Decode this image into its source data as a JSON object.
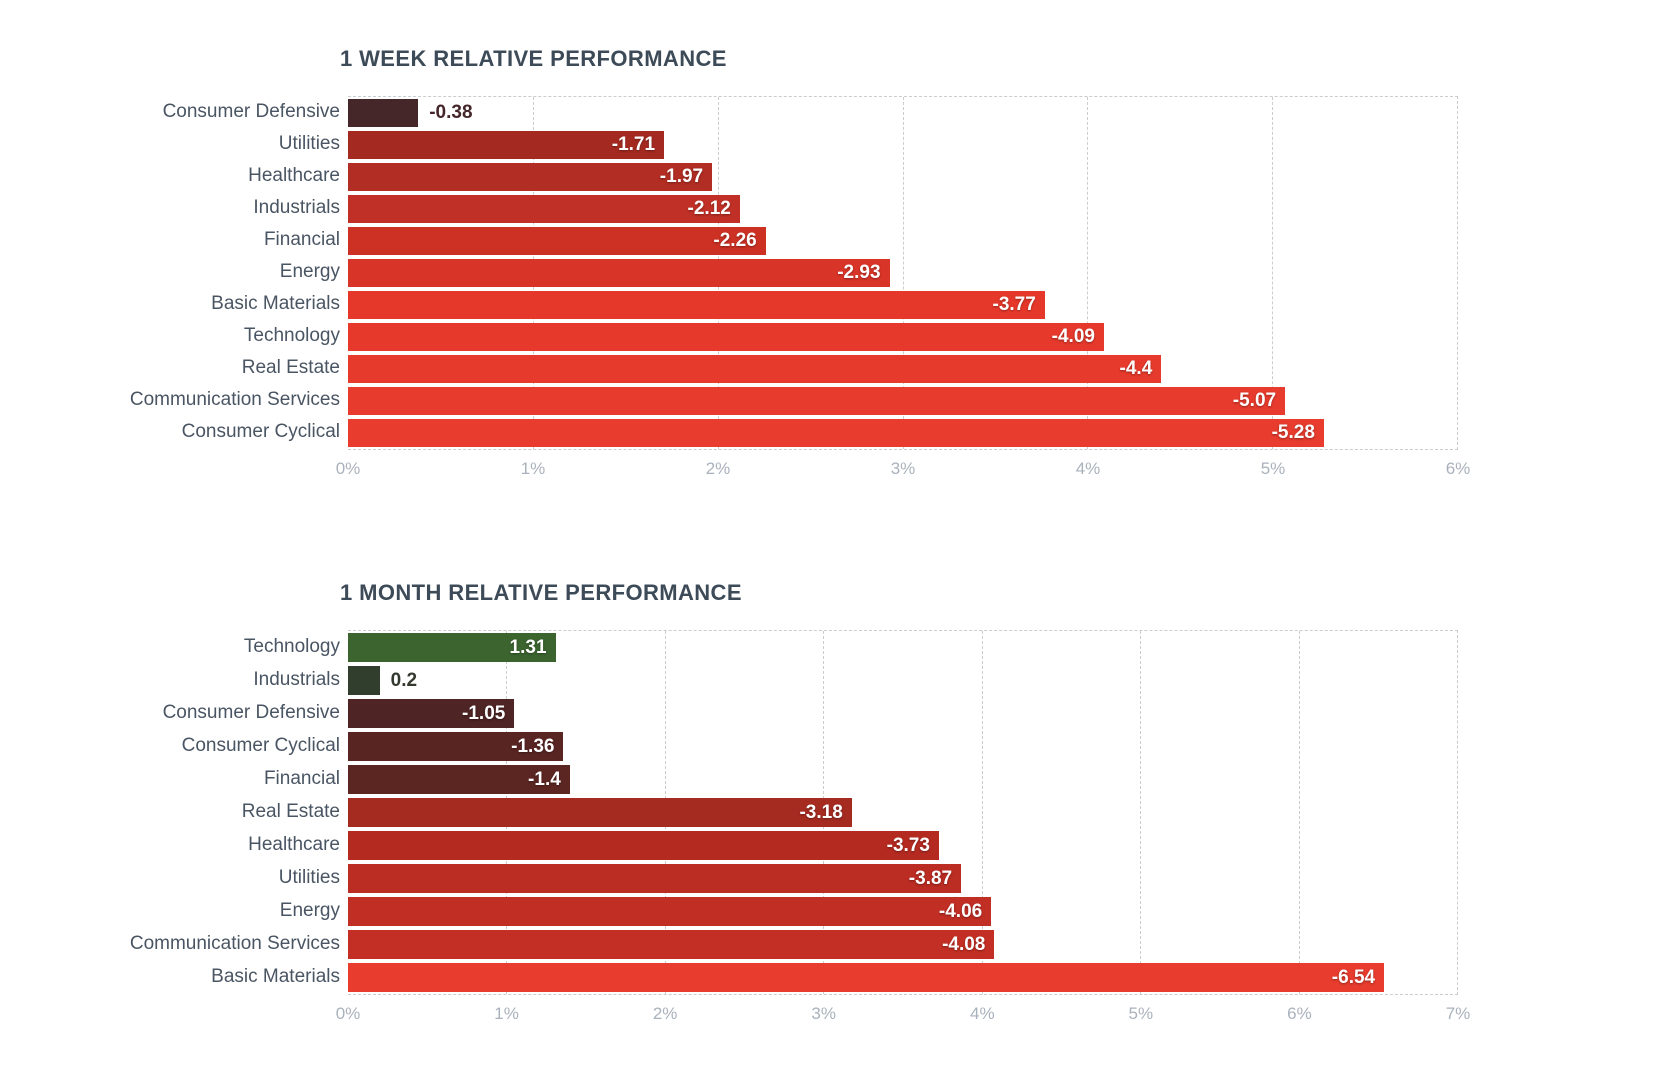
{
  "style": {
    "title_color": "#3d4a57",
    "category_color": "#4a5563",
    "tick_color": "#a9b2bc",
    "grid_color": "#c9cdd0",
    "value_text_color": "#ffffff",
    "positive_color": "#3b642f",
    "negative_bright_color": "#e73c2e"
  },
  "chart_data": [
    {
      "type": "bar",
      "orientation": "horizontal",
      "title": "1 WEEK RELATIVE PERFORMANCE",
      "xlabel": "",
      "ylabel": "",
      "xlim": [
        0,
        6
      ],
      "ticks": [
        "0%",
        "1%",
        "2%",
        "3%",
        "4%",
        "5%",
        "6%"
      ],
      "grid": "dashed-vertical",
      "legend": "none",
      "categories": [
        "Consumer Defensive",
        "Utilities",
        "Healthcare",
        "Industrials",
        "Financial",
        "Energy",
        "Basic Materials",
        "Technology",
        "Real Estate",
        "Communication Services",
        "Consumer Cyclical"
      ],
      "values": [
        -0.38,
        -1.71,
        -1.97,
        -2.12,
        -2.26,
        -2.93,
        -3.77,
        -4.09,
        -4.4,
        -5.07,
        -5.28
      ],
      "bars": [
        {
          "category": "Consumer Defensive",
          "value": -0.38,
          "label": "-0.38",
          "color": "#45272a",
          "label_inside": false,
          "label_color": "#44262a"
        },
        {
          "category": "Utilities",
          "value": -1.71,
          "label": "-1.71",
          "color": "#a42a21",
          "label_inside": true
        },
        {
          "category": "Healthcare",
          "value": -1.97,
          "label": "-1.97",
          "color": "#b22d23",
          "label_inside": true
        },
        {
          "category": "Industrials",
          "value": -2.12,
          "label": "-2.12",
          "color": "#c03026",
          "label_inside": true
        },
        {
          "category": "Financial",
          "value": -2.26,
          "label": "-2.26",
          "color": "#cc3124",
          "label_inside": true
        },
        {
          "category": "Energy",
          "value": -2.93,
          "label": "-2.93",
          "color": "#d93428",
          "label_inside": true
        },
        {
          "category": "Basic Materials",
          "value": -3.77,
          "label": "-3.77",
          "color": "#e5382b",
          "label_inside": true
        },
        {
          "category": "Technology",
          "value": -4.09,
          "label": "-4.09",
          "color": "#e6392c",
          "label_inside": true
        },
        {
          "category": "Real Estate",
          "value": -4.4,
          "label": "-4.4",
          "color": "#e63a2c",
          "label_inside": true
        },
        {
          "category": "Communication Services",
          "value": -5.07,
          "label": "-5.07",
          "color": "#e73b2d",
          "label_inside": true
        },
        {
          "category": "Consumer Cyclical",
          "value": -5.28,
          "label": "-5.28",
          "color": "#e73c2e",
          "label_inside": true
        }
      ]
    },
    {
      "type": "bar",
      "orientation": "horizontal",
      "title": "1 MONTH RELATIVE PERFORMANCE",
      "xlabel": "",
      "ylabel": "",
      "xlim": [
        0,
        7
      ],
      "ticks": [
        "0%",
        "1%",
        "2%",
        "3%",
        "4%",
        "5%",
        "6%",
        "7%"
      ],
      "grid": "dashed-vertical",
      "legend": "none",
      "categories": [
        "Technology",
        "Industrials",
        "Consumer Defensive",
        "Consumer Cyclical",
        "Financial",
        "Real Estate",
        "Healthcare",
        "Utilities",
        "Energy",
        "Communication Services",
        "Basic Materials"
      ],
      "values": [
        1.31,
        0.2,
        -1.05,
        -1.36,
        -1.4,
        -3.18,
        -3.73,
        -3.87,
        -4.06,
        -4.08,
        -6.54
      ],
      "bars": [
        {
          "category": "Technology",
          "value": 1.31,
          "label": "1.31",
          "color": "#3b642f",
          "label_inside": true
        },
        {
          "category": "Industrials",
          "value": 0.2,
          "label": "0.2",
          "color": "#323e2d",
          "label_inside": false,
          "label_color": "#33392f"
        },
        {
          "category": "Consumer Defensive",
          "value": -1.05,
          "label": "-1.05",
          "color": "#4e2425",
          "label_inside": true
        },
        {
          "category": "Consumer Cyclical",
          "value": -1.36,
          "label": "-1.36",
          "color": "#592523",
          "label_inside": true
        },
        {
          "category": "Financial",
          "value": -1.4,
          "label": "-1.4",
          "color": "#5b2622",
          "label_inside": true
        },
        {
          "category": "Real Estate",
          "value": -3.18,
          "label": "-3.18",
          "color": "#a52b21",
          "label_inside": true
        },
        {
          "category": "Healthcare",
          "value": -3.73,
          "label": "-3.73",
          "color": "#b42a21",
          "label_inside": true
        },
        {
          "category": "Utilities",
          "value": -3.87,
          "label": "-3.87",
          "color": "#bb2c23",
          "label_inside": true
        },
        {
          "category": "Energy",
          "value": -4.06,
          "label": "-4.06",
          "color": "#c12e24",
          "label_inside": true
        },
        {
          "category": "Communication Services",
          "value": -4.08,
          "label": "-4.08",
          "color": "#c32f24",
          "label_inside": true
        },
        {
          "category": "Basic Materials",
          "value": -6.54,
          "label": "-6.54",
          "color": "#e73c2e",
          "label_inside": true
        }
      ]
    }
  ]
}
